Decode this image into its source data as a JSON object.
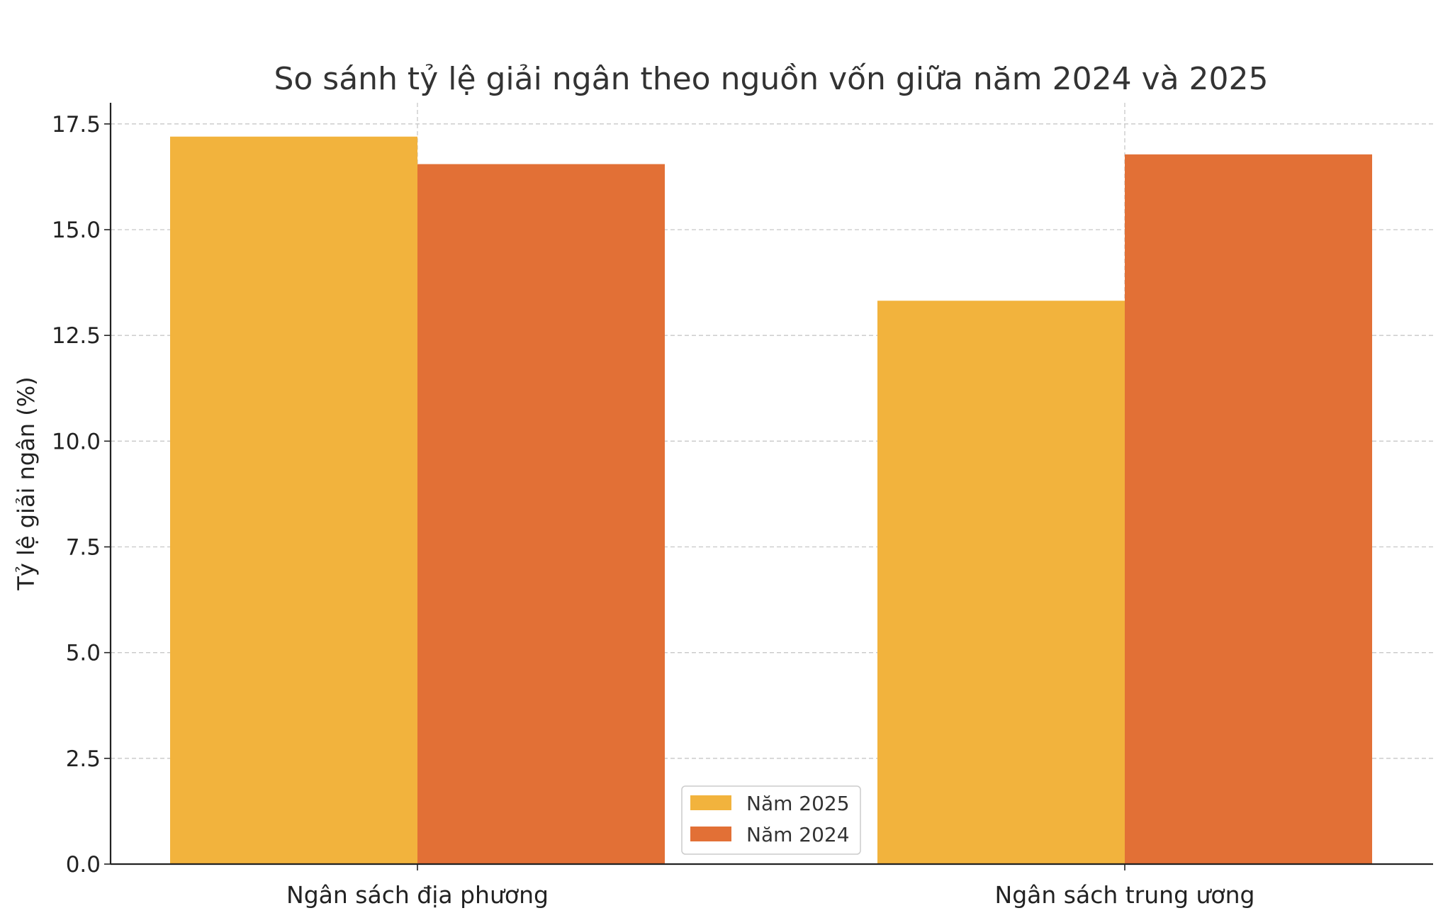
{
  "chart_data": {
    "type": "bar",
    "title": "So sánh tỷ lệ giải ngân theo nguồn vốn giữa năm 2024 và 2025",
    "xlabel": "",
    "ylabel": "Tỷ lệ giải ngân (%)",
    "categories": [
      "Ngân sách địa phương",
      "Ngân sách trung ương"
    ],
    "series": [
      {
        "name": "Năm 2025",
        "values": [
          17.2,
          13.32
        ],
        "color": "#F2B33D"
      },
      {
        "name": "Năm 2024",
        "values": [
          16.55,
          16.78
        ],
        "color": "#E27036"
      }
    ],
    "ylim": [
      0,
      18
    ],
    "yticks": [
      0.0,
      2.5,
      5.0,
      7.5,
      10.0,
      12.5,
      15.0,
      17.5
    ],
    "ytick_labels": [
      "0.0",
      "2.5",
      "5.0",
      "7.5",
      "10.0",
      "12.5",
      "15.0",
      "17.5"
    ],
    "grid": true,
    "legend_position": "bottom-center"
  }
}
